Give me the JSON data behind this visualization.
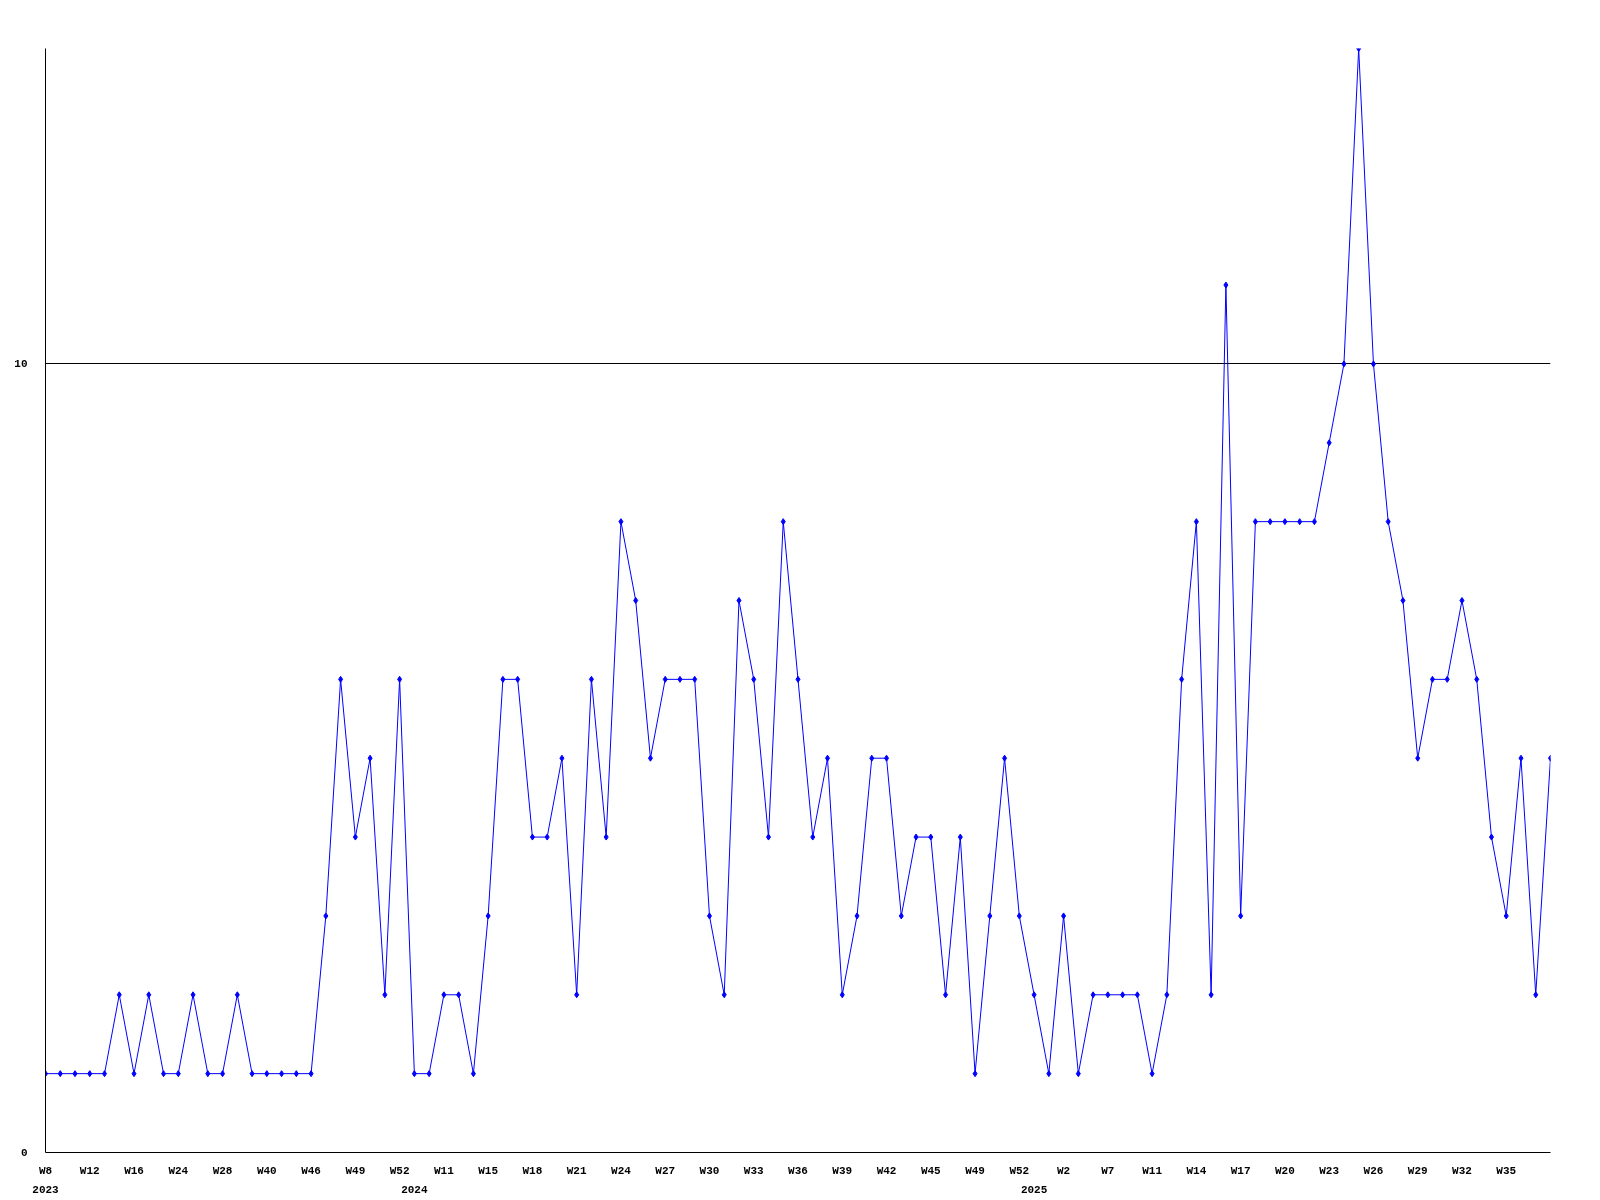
{
  "chart_data": {
    "type": "line",
    "color": "#0000ff",
    "marker": "diamond",
    "grid": "y",
    "ylim": [
      0,
      14
    ],
    "yticks": [
      0,
      10
    ],
    "categories": [
      "W8",
      null,
      null,
      "W12",
      null,
      null,
      "W16",
      null,
      null,
      "W24",
      null,
      null,
      "W28",
      null,
      null,
      "W40",
      null,
      null,
      "W46",
      null,
      null,
      "W49",
      null,
      null,
      "W52",
      null,
      null,
      "W11",
      null,
      null,
      "W15",
      null,
      null,
      "W18",
      null,
      null,
      "W21",
      null,
      null,
      "W24",
      null,
      null,
      "W27",
      null,
      null,
      "W30",
      null,
      null,
      "W33",
      null,
      null,
      "W36",
      null,
      null,
      "W39",
      null,
      null,
      "W42",
      null,
      null,
      "W45",
      null,
      null,
      "W49",
      null,
      null,
      "W52",
      null,
      null,
      "W2",
      null,
      null,
      "W7",
      null,
      null,
      "W11",
      null,
      null,
      "W14",
      null,
      null,
      "W17",
      null,
      null,
      "W20",
      null,
      null,
      "W23",
      null,
      null,
      "W26",
      null,
      null,
      "W29",
      null,
      null,
      "W32",
      null,
      null,
      "W35",
      null,
      null,
      null
    ],
    "values": [
      1,
      1,
      1,
      1,
      1,
      2,
      1,
      2,
      1,
      1,
      2,
      1,
      1,
      2,
      1,
      1,
      1,
      1,
      1,
      3,
      6,
      4,
      5,
      2,
      6,
      1,
      1,
      2,
      2,
      1,
      3,
      6,
      6,
      4,
      4,
      5,
      2,
      6,
      4,
      8,
      7,
      5,
      6,
      6,
      6,
      3,
      2,
      7,
      6,
      4,
      8,
      6,
      4,
      5,
      2,
      3,
      5,
      5,
      3,
      4,
      4,
      2,
      4,
      1,
      3,
      5,
      3,
      2,
      1,
      3,
      1,
      2,
      2,
      2,
      2,
      1,
      2,
      6,
      8,
      2,
      11,
      3,
      8,
      8,
      8,
      8,
      8,
      9,
      10,
      14,
      10,
      8,
      7,
      5,
      6,
      6,
      7,
      6,
      4,
      3,
      5,
      2,
      5
    ],
    "annotations": [
      "2023",
      "2024",
      "2025"
    ]
  }
}
